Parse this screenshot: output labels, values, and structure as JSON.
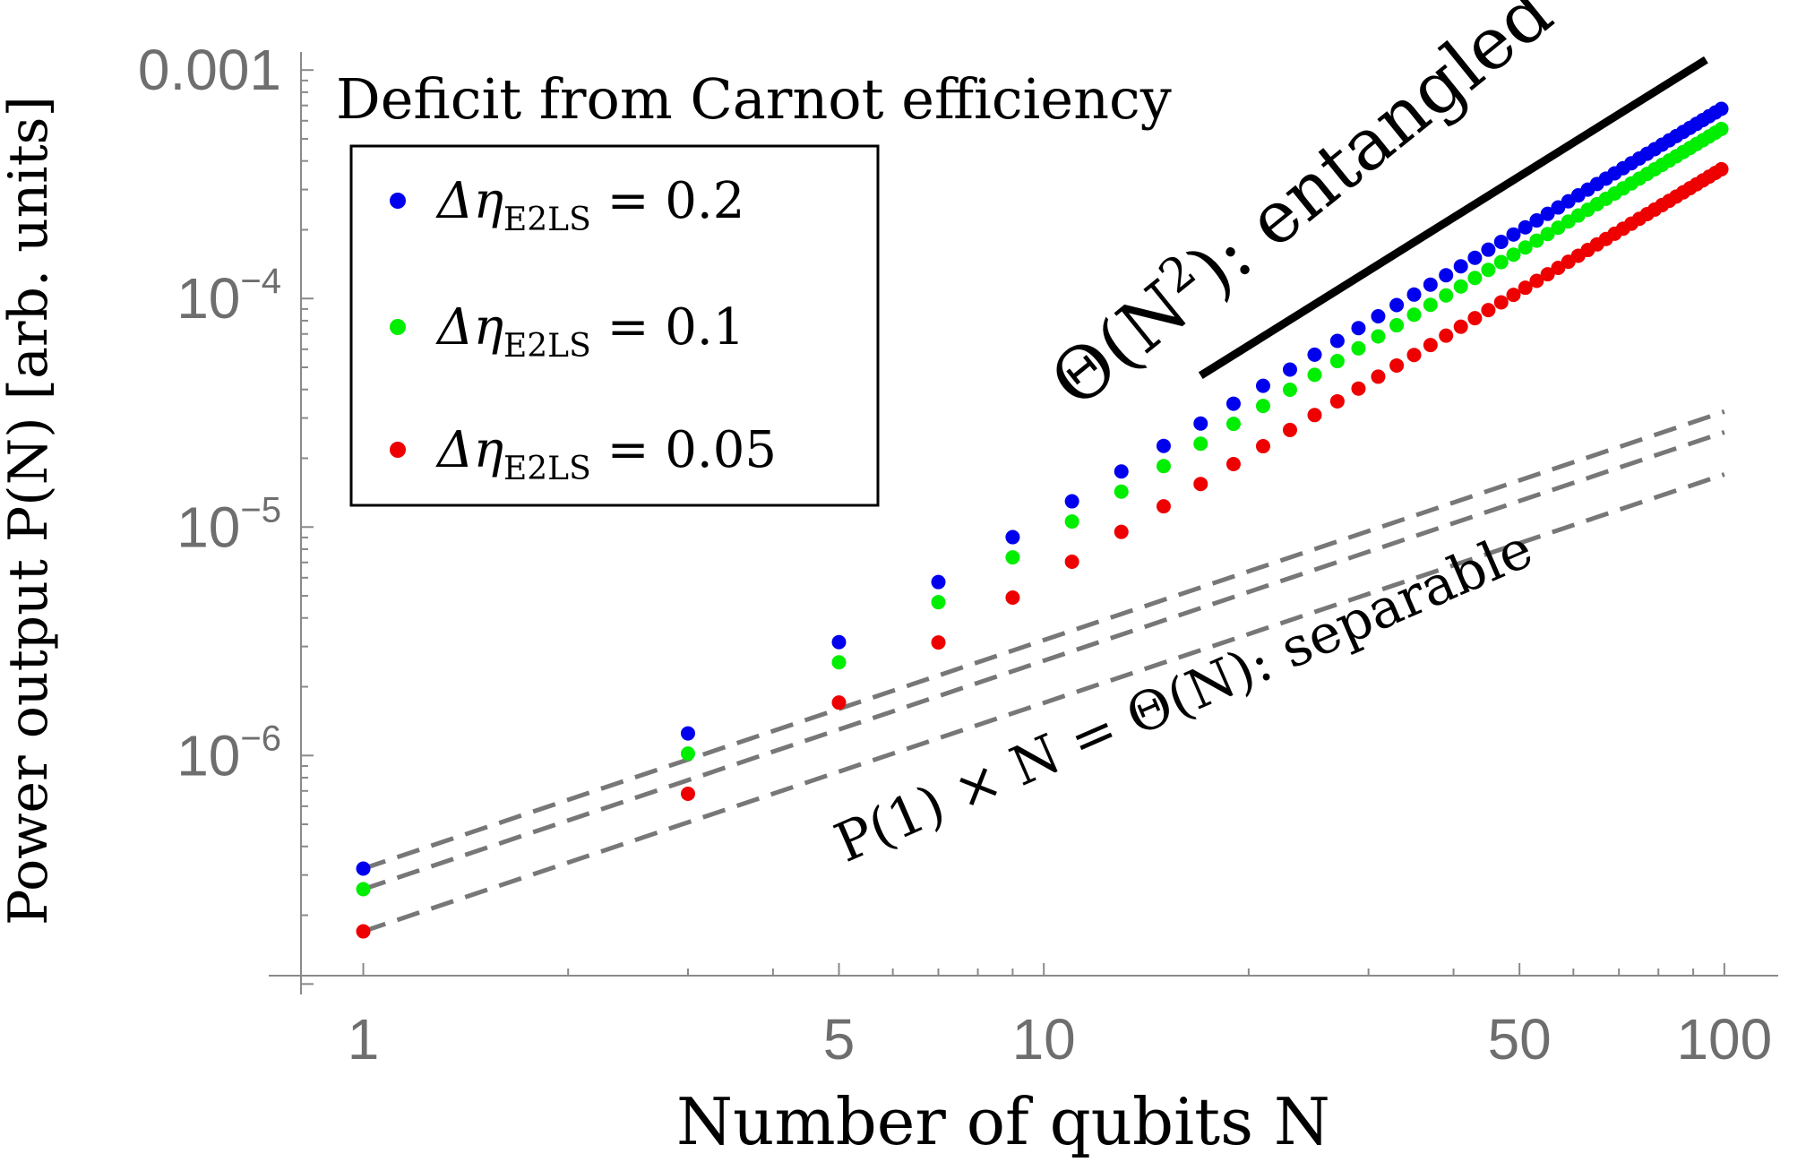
{
  "chart_data": {
    "type": "scatter",
    "title": "Deficit from Carnot efficiency",
    "xlabel": "Number of qubits N",
    "ylabel": "Power output P(N) [arb. units]",
    "x_scale": "log",
    "y_scale": "log",
    "xlim": [
      0.81,
      120
    ],
    "ylim": [
      9e-08,
      0.0012
    ],
    "x_ticks": [
      {
        "value": 1,
        "label": "1"
      },
      {
        "value": 5,
        "label": "5"
      },
      {
        "value": 10,
        "label": "10"
      },
      {
        "value": 50,
        "label": "50"
      },
      {
        "value": 100,
        "label": "100"
      }
    ],
    "y_ticks": [
      {
        "value": 0.001,
        "label": "0.001",
        "base": "",
        "exp": ""
      },
      {
        "value": 0.0001,
        "label": "",
        "base": "10",
        "exp": "−4"
      },
      {
        "value": 1e-05,
        "label": "",
        "base": "10",
        "exp": "−5"
      },
      {
        "value": 1e-06,
        "label": "",
        "base": "10",
        "exp": "−6"
      }
    ],
    "grid": false,
    "legend_position": "top-left",
    "series": [
      {
        "name": "Δη_E2LS = 0.2",
        "legend_prefix": "Δη",
        "legend_sub": "E2LS",
        "legend_value": " = 0.2",
        "color": "#0000ee",
        "p1": 3.2e-07,
        "p3": 1.25e-06,
        "exponent": 1.8
      },
      {
        "name": "Δη_E2LS = 0.1",
        "legend_prefix": "Δη",
        "legend_sub": "E2LS",
        "legend_value": " = 0.1",
        "color": "#00ee00",
        "p1": 2.6e-07,
        "p3": 1.02e-06,
        "exponent": 1.8
      },
      {
        "name": "Δη_E2LS = 0.05",
        "legend_prefix": "Δη",
        "legend_sub": "E2LS",
        "legend_value": " = 0.05",
        "color": "#ee0000",
        "p1": 1.7e-07,
        "p3": 6.8e-07,
        "exponent": 1.8
      }
    ],
    "x_points": [
      1,
      3,
      5,
      7,
      9,
      11,
      13,
      15,
      17,
      19,
      21,
      23,
      25,
      27,
      29,
      31,
      33,
      35,
      37,
      39,
      41,
      43,
      45,
      47,
      49,
      51,
      53,
      55,
      57,
      59,
      61,
      63,
      65,
      67,
      69,
      71,
      73,
      75,
      77,
      79,
      81,
      83,
      85,
      87,
      89,
      91,
      93,
      95,
      97,
      99
    ],
    "reference_lines": [
      {
        "kind": "linear",
        "style": "dashed",
        "color": "#777777",
        "base": 3.2e-07,
        "x_range": [
          1,
          100
        ]
      },
      {
        "kind": "linear",
        "style": "dashed",
        "color": "#777777",
        "base": 2.6e-07,
        "x_range": [
          1,
          100
        ]
      },
      {
        "kind": "linear",
        "style": "dashed",
        "color": "#777777",
        "base": 1.7e-07,
        "x_range": [
          1,
          100
        ]
      },
      {
        "kind": "quadratic",
        "style": "solid",
        "color": "#000000",
        "x_range": [
          17,
          94
        ],
        "y_range": [
          4.6e-05,
          0.00111
        ]
      }
    ],
    "annotations": {
      "entangled": {
        "prefix": "Θ(N",
        "sup": "2",
        "suffix": "): entangled"
      },
      "separable": "P(1) × N = Θ(N): separable"
    }
  }
}
